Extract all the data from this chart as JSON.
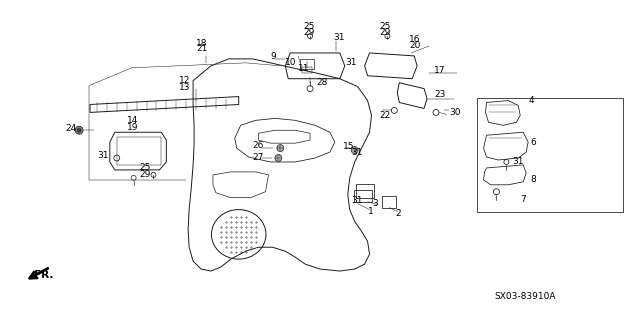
{
  "part_number": "SX03-83910A",
  "bg": "#ffffff",
  "lc": "#1a1a1a",
  "figsize": [
    6.37,
    3.2
  ],
  "dpi": 100
}
